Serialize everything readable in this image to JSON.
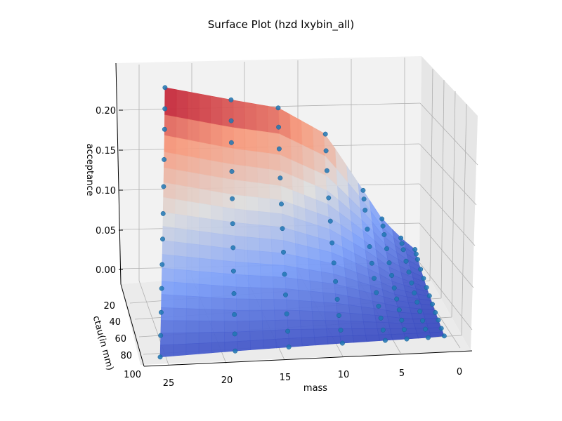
{
  "chart_data": {
    "type": "surface",
    "title": "Surface Plot (hzd lxybin_all)",
    "xlabel": "mass",
    "ylabel": "ctau(in mm)",
    "zlabel": "acceptance",
    "x_ticks": [
      "25",
      "20",
      "15",
      "10",
      "5",
      "0"
    ],
    "y_ticks": [
      "20",
      "40",
      "60",
      "80",
      "100"
    ],
    "z_ticks": [
      "0.00",
      "0.05",
      "0.10",
      "0.15",
      "0.20"
    ],
    "xlim": [
      0,
      27
    ],
    "ylim": [
      0,
      100
    ],
    "zlim": [
      0,
      0.23
    ],
    "colormap": "coolwarm",
    "marker_color": "#1f77b4",
    "series": [
      {
        "mass": 27,
        "ctau": [
          1,
          5,
          10,
          20,
          30,
          40,
          50,
          60,
          70,
          80,
          90,
          100
        ],
        "acceptance": [
          0.23,
          0.208,
          0.188,
          0.162,
          0.14,
          0.118,
          0.098,
          0.078,
          0.06,
          0.042,
          0.025,
          0.01
        ]
      },
      {
        "mass": 20,
        "ctau": [
          1,
          5,
          10,
          20,
          30,
          40,
          50,
          60,
          70,
          80,
          90,
          100
        ],
        "acceptance": [
          0.212,
          0.19,
          0.168,
          0.143,
          0.12,
          0.1,
          0.081,
          0.063,
          0.046,
          0.031,
          0.018,
          0.008
        ]
      },
      {
        "mass": 15,
        "ctau": [
          1,
          5,
          10,
          20,
          30,
          40,
          50,
          60,
          70,
          80,
          90,
          100
        ],
        "acceptance": [
          0.2,
          0.18,
          0.158,
          0.132,
          0.11,
          0.09,
          0.071,
          0.054,
          0.039,
          0.026,
          0.015,
          0.006
        ]
      },
      {
        "mass": 10,
        "ctau": [
          1,
          5,
          10,
          20,
          30,
          40,
          50,
          60,
          70,
          80,
          90,
          100
        ],
        "acceptance": [
          0.165,
          0.148,
          0.128,
          0.104,
          0.085,
          0.068,
          0.053,
          0.04,
          0.028,
          0.018,
          0.01,
          0.004
        ]
      },
      {
        "mass": 6,
        "ctau": [
          1,
          5,
          10,
          20,
          30,
          40,
          50,
          60,
          70,
          80,
          90,
          100
        ],
        "acceptance": [
          0.092,
          0.085,
          0.076,
          0.062,
          0.05,
          0.039,
          0.03,
          0.022,
          0.015,
          0.01,
          0.005,
          0.002
        ]
      },
      {
        "mass": 4,
        "ctau": [
          1,
          5,
          10,
          20,
          30,
          40,
          50,
          60,
          70,
          80,
          90,
          100
        ],
        "acceptance": [
          0.055,
          0.05,
          0.044,
          0.036,
          0.028,
          0.022,
          0.016,
          0.012,
          0.008,
          0.005,
          0.003,
          0.001
        ]
      },
      {
        "mass": 2,
        "ctau": [
          1,
          5,
          10,
          20,
          30,
          40,
          50,
          60,
          70,
          80,
          90,
          100
        ],
        "acceptance": [
          0.03,
          0.027,
          0.024,
          0.019,
          0.015,
          0.011,
          0.008,
          0.006,
          0.004,
          0.002,
          0.001,
          0.0
        ]
      },
      {
        "mass": 0.5,
        "ctau": [
          1,
          5,
          10,
          20,
          30,
          40,
          50,
          60,
          70,
          80,
          90,
          100
        ],
        "acceptance": [
          0.015,
          0.013,
          0.011,
          0.008,
          0.006,
          0.004,
          0.003,
          0.002,
          0.001,
          0.001,
          0.0,
          0.0
        ]
      }
    ]
  }
}
